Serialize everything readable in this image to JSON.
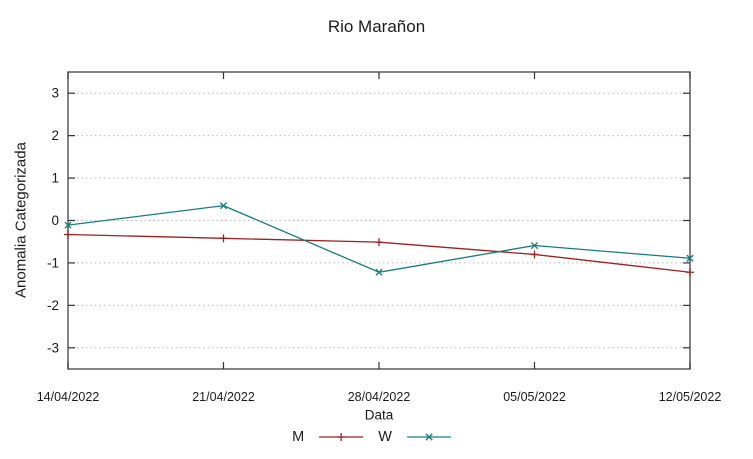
{
  "chart_data": {
    "type": "line",
    "title": "Rio Marañon",
    "xlabel": "Data",
    "ylabel": "Anomalia Categorizada",
    "x": [
      "14/04/2022",
      "21/04/2022",
      "28/04/2022",
      "05/05/2022",
      "12/05/2022"
    ],
    "yticks": [
      -3,
      -2,
      -1,
      0,
      1,
      2,
      3
    ],
    "ylim": [
      -3.5,
      3.5
    ],
    "grid": "horizontal-dotted",
    "legend_position": "bottom-center",
    "series": [
      {
        "name": "M",
        "marker": "plus",
        "color": "#a02020",
        "values": [
          -0.33,
          -0.42,
          -0.51,
          -0.8,
          -1.22
        ]
      },
      {
        "name": "W",
        "marker": "cross",
        "color": "#147c7c",
        "values": [
          -0.11,
          0.35,
          -1.22,
          -0.59,
          -0.89
        ]
      }
    ]
  },
  "colors": {
    "background": "#ffffff",
    "border": "#4f4f4f",
    "tick": "#333333",
    "grid": "#b9b9b9",
    "text": "#1c1c1c"
  }
}
